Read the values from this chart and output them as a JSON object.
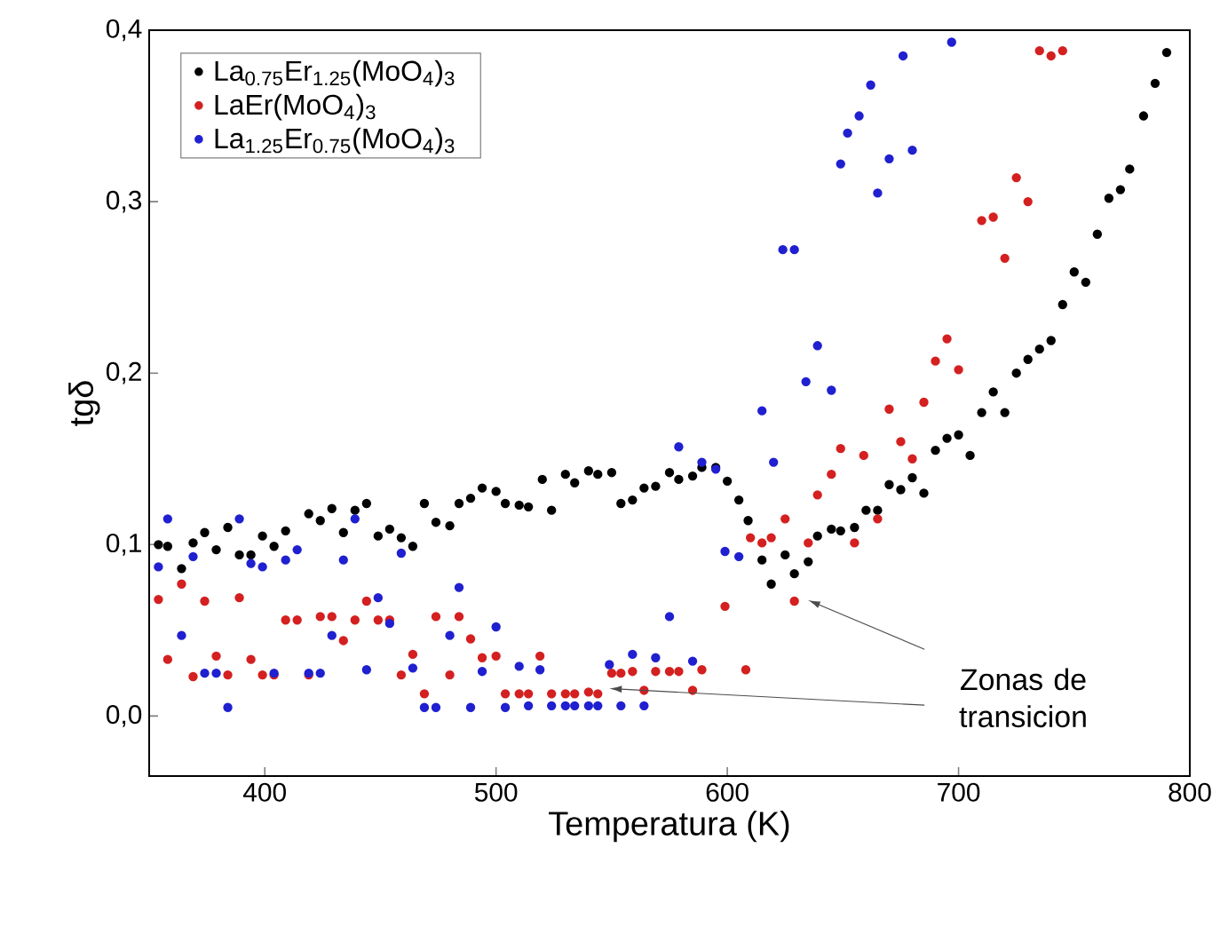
{
  "chart_data": {
    "type": "scatter",
    "xlabel": "Temperatura (K)",
    "ylabel": "tgδ",
    "xlim": [
      350,
      800
    ],
    "ylim": [
      -0.035,
      0.4
    ],
    "xticks": [
      400,
      500,
      600,
      700,
      800
    ],
    "yticks": [
      {
        "value": 0,
        "label": "0,0"
      },
      {
        "value": 0.1,
        "label": "0,1"
      },
      {
        "value": 0.2,
        "label": "0,2"
      },
      {
        "value": 0.3,
        "label": "0,3"
      },
      {
        "value": 0.4,
        "label": "0,4"
      }
    ],
    "grid": false,
    "legend": "top left",
    "annotations": [
      {
        "text": "Zonas de transicion",
        "x": 549,
        "y": 0.016
      }
    ],
    "series": [
      {
        "name": "La$_{0.75}$Er$_{1.25}$(MoO$_{4}$)$_{3}$",
        "color": "#000000",
        "x": [
          354,
          358,
          364,
          369,
          374,
          379,
          384,
          389,
          394,
          399,
          404,
          409,
          419,
          424,
          429,
          434,
          439,
          444,
          449,
          454,
          459,
          464,
          469,
          474,
          480,
          484,
          489,
          494,
          500,
          504,
          510,
          514,
          520,
          524,
          530,
          534,
          540,
          544,
          550,
          554,
          559,
          564,
          569,
          575,
          579,
          585,
          589,
          595,
          600,
          605,
          609,
          615,
          619,
          625,
          629,
          635,
          639,
          645,
          649,
          655,
          660,
          665,
          670,
          675,
          680,
          685,
          690,
          695,
          700,
          705,
          710,
          715,
          720,
          725,
          730,
          735,
          740,
          745,
          750,
          755,
          760,
          765,
          770,
          774,
          780,
          785,
          790
        ],
        "values": [
          0.1,
          0.099,
          0.086,
          0.101,
          0.107,
          0.097,
          0.11,
          0.094,
          0.094,
          0.105,
          0.099,
          0.108,
          0.118,
          0.114,
          0.121,
          0.107,
          0.12,
          0.124,
          0.105,
          0.109,
          0.104,
          0.099,
          0.124,
          0.113,
          0.111,
          0.124,
          0.127,
          0.133,
          0.131,
          0.124,
          0.123,
          0.122,
          0.138,
          0.12,
          0.141,
          0.136,
          0.143,
          0.141,
          0.142,
          0.124,
          0.126,
          0.133,
          0.134,
          0.142,
          0.138,
          0.14,
          0.145,
          0.145,
          0.137,
          0.126,
          0.114,
          0.091,
          0.077,
          0.094,
          0.083,
          0.09,
          0.105,
          0.109,
          0.108,
          0.11,
          0.12,
          0.12,
          0.135,
          0.132,
          0.139,
          0.13,
          0.155,
          0.162,
          0.164,
          0.152,
          0.177,
          0.189,
          0.177,
          0.2,
          0.208,
          0.214,
          0.219,
          0.24,
          0.259,
          0.253,
          0.281,
          0.302,
          0.307,
          0.319,
          0.35,
          0.369,
          0.387
        ]
      },
      {
        "name": "LaEr(MoO$_{4}$)$_{3}$",
        "color": "#d42020",
        "x": [
          354,
          358,
          364,
          369,
          374,
          379,
          384,
          389,
          394,
          399,
          404,
          409,
          414,
          419,
          424,
          429,
          434,
          439,
          444,
          449,
          454,
          459,
          464,
          469,
          474,
          480,
          484,
          489,
          494,
          500,
          504,
          510,
          514,
          519,
          524,
          530,
          534,
          540,
          544,
          550,
          554,
          559,
          564,
          569,
          575,
          579,
          585,
          589,
          599,
          608,
          610,
          615,
          619,
          625,
          629,
          635,
          639,
          645,
          649,
          655,
          659,
          665,
          670,
          675,
          680,
          685,
          690,
          695,
          700,
          710,
          715,
          720,
          725,
          730,
          735,
          740,
          745
        ],
        "values": [
          0.068,
          0.033,
          0.077,
          0.023,
          0.067,
          0.035,
          0.024,
          0.069,
          0.033,
          0.024,
          0.024,
          0.056,
          0.056,
          0.024,
          0.058,
          0.058,
          0.044,
          0.056,
          0.067,
          0.056,
          0.056,
          0.024,
          0.036,
          0.013,
          0.058,
          0.024,
          0.058,
          0.045,
          0.034,
          0.035,
          0.013,
          0.013,
          0.013,
          0.035,
          0.013,
          0.013,
          0.013,
          0.014,
          0.013,
          0.025,
          0.025,
          0.026,
          0.015,
          0.026,
          0.026,
          0.026,
          0.015,
          0.027,
          0.064,
          0.027,
          0.104,
          0.101,
          0.104,
          0.115,
          0.067,
          0.101,
          0.129,
          0.141,
          0.156,
          0.101,
          0.152,
          0.115,
          0.179,
          0.16,
          0.15,
          0.183,
          0.207,
          0.22,
          0.202,
          0.289,
          0.291,
          0.267,
          0.314,
          0.3,
          0.388,
          0.385,
          0.388
        ]
      },
      {
        "name": "La$_{1.25}$Er$_{0.75}$(MoO$_{4}$)$_{3}$",
        "color": "#2020d0",
        "x": [
          354,
          358,
          364,
          369,
          374,
          379,
          384,
          389,
          394,
          399,
          404,
          409,
          414,
          419,
          424,
          429,
          434,
          439,
          444,
          449,
          454,
          459,
          464,
          469,
          474,
          480,
          484,
          489,
          494,
          500,
          504,
          510,
          514,
          519,
          524,
          530,
          534,
          540,
          544,
          549,
          554,
          559,
          564,
          569,
          575,
          579,
          585,
          589,
          595,
          599,
          605,
          615,
          620,
          624,
          629,
          634,
          639,
          645,
          649,
          652,
          657,
          662,
          665,
          670,
          676,
          680,
          697
        ],
        "values": [
          0.087,
          0.115,
          0.047,
          0.093,
          0.025,
          0.025,
          0.005,
          0.115,
          0.089,
          0.087,
          0.025,
          0.091,
          0.097,
          0.025,
          0.025,
          0.047,
          0.091,
          0.115,
          0.027,
          0.069,
          0.054,
          0.095,
          0.028,
          0.005,
          0.005,
          0.047,
          0.075,
          0.005,
          0.026,
          0.052,
          0.005,
          0.029,
          0.006,
          0.027,
          0.006,
          0.006,
          0.006,
          0.006,
          0.006,
          0.03,
          0.006,
          0.036,
          0.006,
          0.034,
          0.058,
          0.157,
          0.032,
          0.148,
          0.144,
          0.096,
          0.093,
          0.178,
          0.148,
          0.272,
          0.272,
          0.195,
          0.216,
          0.19,
          0.322,
          0.34,
          0.35,
          0.368,
          0.305,
          0.325,
          0.385,
          0.33,
          0.393
        ]
      }
    ]
  }
}
